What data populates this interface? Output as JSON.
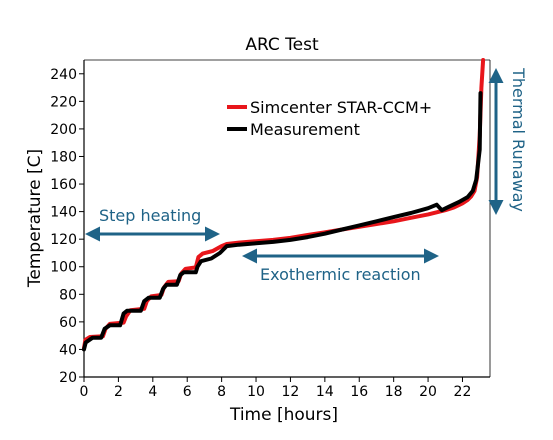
{
  "chart_data": {
    "type": "line",
    "title": "ARC Test",
    "xlabel": "Time [hours]",
    "ylabel": "Temperature [C]",
    "xlim": [
      0,
      23.6
    ],
    "ylim": [
      20,
      250
    ],
    "xticks": [
      0,
      2,
      4,
      6,
      8,
      10,
      12,
      14,
      16,
      18,
      20,
      22
    ],
    "yticks": [
      20,
      40,
      60,
      80,
      100,
      120,
      140,
      160,
      180,
      200,
      220,
      240
    ],
    "grid": false,
    "legend_position": "top-right",
    "series": [
      {
        "name": "Simcenter STAR-CCM+",
        "color": "#e8161b",
        "x": [
          0,
          0.08,
          0.35,
          1.1,
          1.25,
          1.5,
          2.3,
          2.45,
          2.7,
          3.5,
          3.65,
          3.9,
          4.5,
          4.65,
          4.9,
          5.5,
          5.65,
          5.9,
          6.5,
          6.65,
          6.9,
          7.5,
          8.0,
          8.3,
          9,
          10,
          11,
          12,
          13,
          14,
          15,
          16,
          17,
          18,
          19,
          20,
          20.5,
          21,
          21.5,
          22,
          22.3,
          22.5,
          22.7,
          22.85,
          23.0,
          23.1,
          23.2
        ],
        "y": [
          41,
          47,
          49,
          49.5,
          55,
          58.5,
          59.5,
          64,
          68.5,
          69.5,
          75,
          78.5,
          79.5,
          85,
          89,
          89.5,
          95,
          98.5,
          99.5,
          107,
          109.5,
          111.5,
          115,
          116.5,
          117.5,
          118.5,
          119.5,
          121,
          123,
          125,
          127,
          129,
          131,
          133,
          135.5,
          138,
          139.5,
          141,
          143,
          146,
          148.5,
          151,
          155,
          165,
          195,
          230,
          250
        ]
      },
      {
        "name": "Measurement",
        "color": "#000000",
        "x": [
          0,
          0.1,
          0.5,
          1.0,
          1.2,
          1.5,
          2.1,
          2.3,
          2.5,
          3.3,
          3.5,
          3.75,
          4.4,
          4.6,
          4.8,
          5.4,
          5.6,
          5.8,
          6.5,
          6.6,
          6.8,
          7.4,
          7.9,
          8.3,
          9,
          10,
          11,
          12,
          13,
          14,
          15,
          16,
          17,
          18,
          19,
          20,
          20.5,
          20.8,
          21.2,
          21.8,
          22.3,
          22.6,
          22.8,
          23.0,
          23.05
        ],
        "y": [
          40,
          45,
          48.5,
          48.5,
          55,
          57.5,
          57.5,
          66,
          68,
          68,
          75,
          77.5,
          77.5,
          84,
          87,
          87,
          94,
          96,
          96,
          100,
          104,
          106,
          110,
          115,
          116,
          117,
          118,
          119.5,
          121.5,
          124,
          127,
          130,
          133,
          136,
          139,
          142.5,
          145,
          141,
          143.5,
          147,
          150.5,
          155,
          163,
          185,
          226
        ]
      }
    ],
    "annotations": [
      {
        "text": "Step heating",
        "arrow": "horizontal"
      },
      {
        "text": "Exothermic reaction",
        "arrow": "horizontal"
      },
      {
        "text": "Thermal Runaway",
        "arrow": "vertical"
      }
    ],
    "annotation_color": "#1f6387"
  }
}
